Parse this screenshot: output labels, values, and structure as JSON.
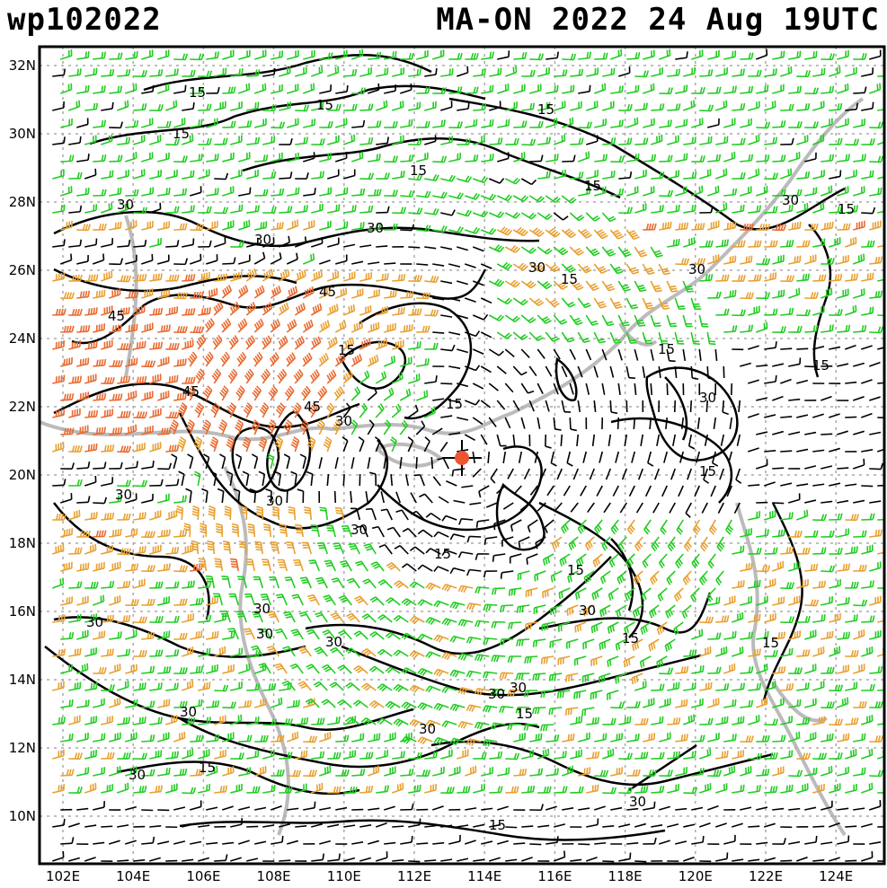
{
  "header": {
    "storm_id": "wp102022",
    "storm_title": "MA-ON 2022 24 Aug 19UTC"
  },
  "axes": {
    "lon_labels": [
      "102E",
      "104E",
      "106E",
      "108E",
      "110E",
      "112E",
      "114E",
      "116E",
      "118E",
      "120E",
      "122E",
      "124E"
    ],
    "lat_labels": [
      "10N",
      "12N",
      "14N",
      "16N",
      "18N",
      "20N",
      "22N",
      "24N",
      "26N",
      "28N",
      "30N",
      "32N"
    ]
  },
  "contour_labels": {
    "isotach_15": "15",
    "isotach_30": "30",
    "isotach_45": "45"
  },
  "storm_center": {
    "lon": 113.3,
    "lat": 20.5,
    "marker_color": "#ee5533"
  },
  "colors": {
    "barb_light": "#000000",
    "barb_moderate": "#22cc22",
    "barb_strong": "#e8a030",
    "barb_very_strong": "#e86a30",
    "coastline": "#bbbbbb",
    "grid": "#aaaaaa",
    "contour": "#000000"
  },
  "layers": [
    "wind barbs",
    "isotach contours",
    "coastline",
    "lat/lon grid"
  ]
}
